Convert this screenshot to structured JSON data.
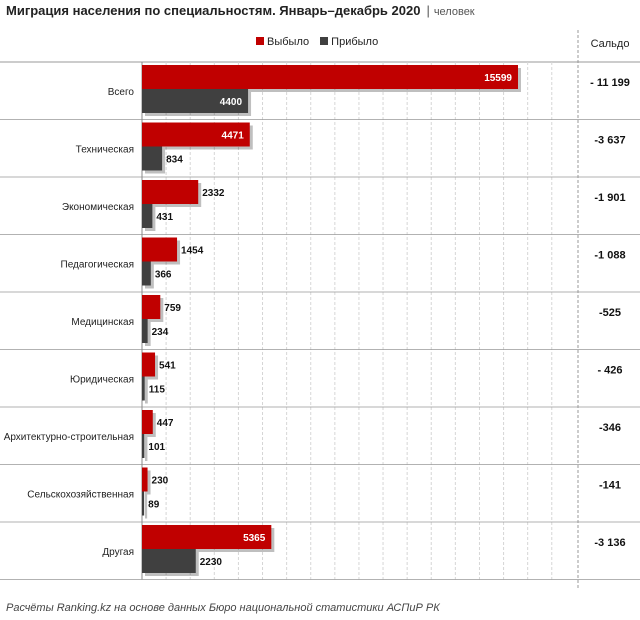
{
  "title": "Миграция населения по специальностям. Январь–декабрь 2020",
  "unit": "человек",
  "legend": {
    "series1": "Выбыло",
    "series2": "Прибыло"
  },
  "saldo_header": "Сальдо",
  "source": "Расчёты Ranking.kz на основе данных Бюро национальной статистики АСПиР РК",
  "colors": {
    "series1": "#c00000",
    "series2": "#404040"
  },
  "chart_data": {
    "type": "bar",
    "orientation": "horizontal",
    "title": "Миграция населения по специальностям. Январь–декабрь 2020",
    "xlim": [
      0,
      16000
    ],
    "categories": [
      "Всего",
      "Техническая",
      "Экономическая",
      "Педагогическая",
      "Медицинская",
      "Юридическая",
      "Архитектурно-строительная",
      "Сельскохозяйственная",
      "Другая"
    ],
    "series": [
      {
        "name": "Выбыло",
        "values": [
          15599,
          4471,
          2332,
          1454,
          759,
          541,
          447,
          230,
          5365
        ]
      },
      {
        "name": "Прибыло",
        "values": [
          4400,
          834,
          431,
          366,
          234,
          115,
          101,
          89,
          2230
        ]
      }
    ],
    "saldo": [
      "- 11 199",
      "-3 637",
      "-1 901",
      "-1 088",
      "-525",
      "- 426",
      "-346",
      "-141",
      "-3 136"
    ]
  }
}
